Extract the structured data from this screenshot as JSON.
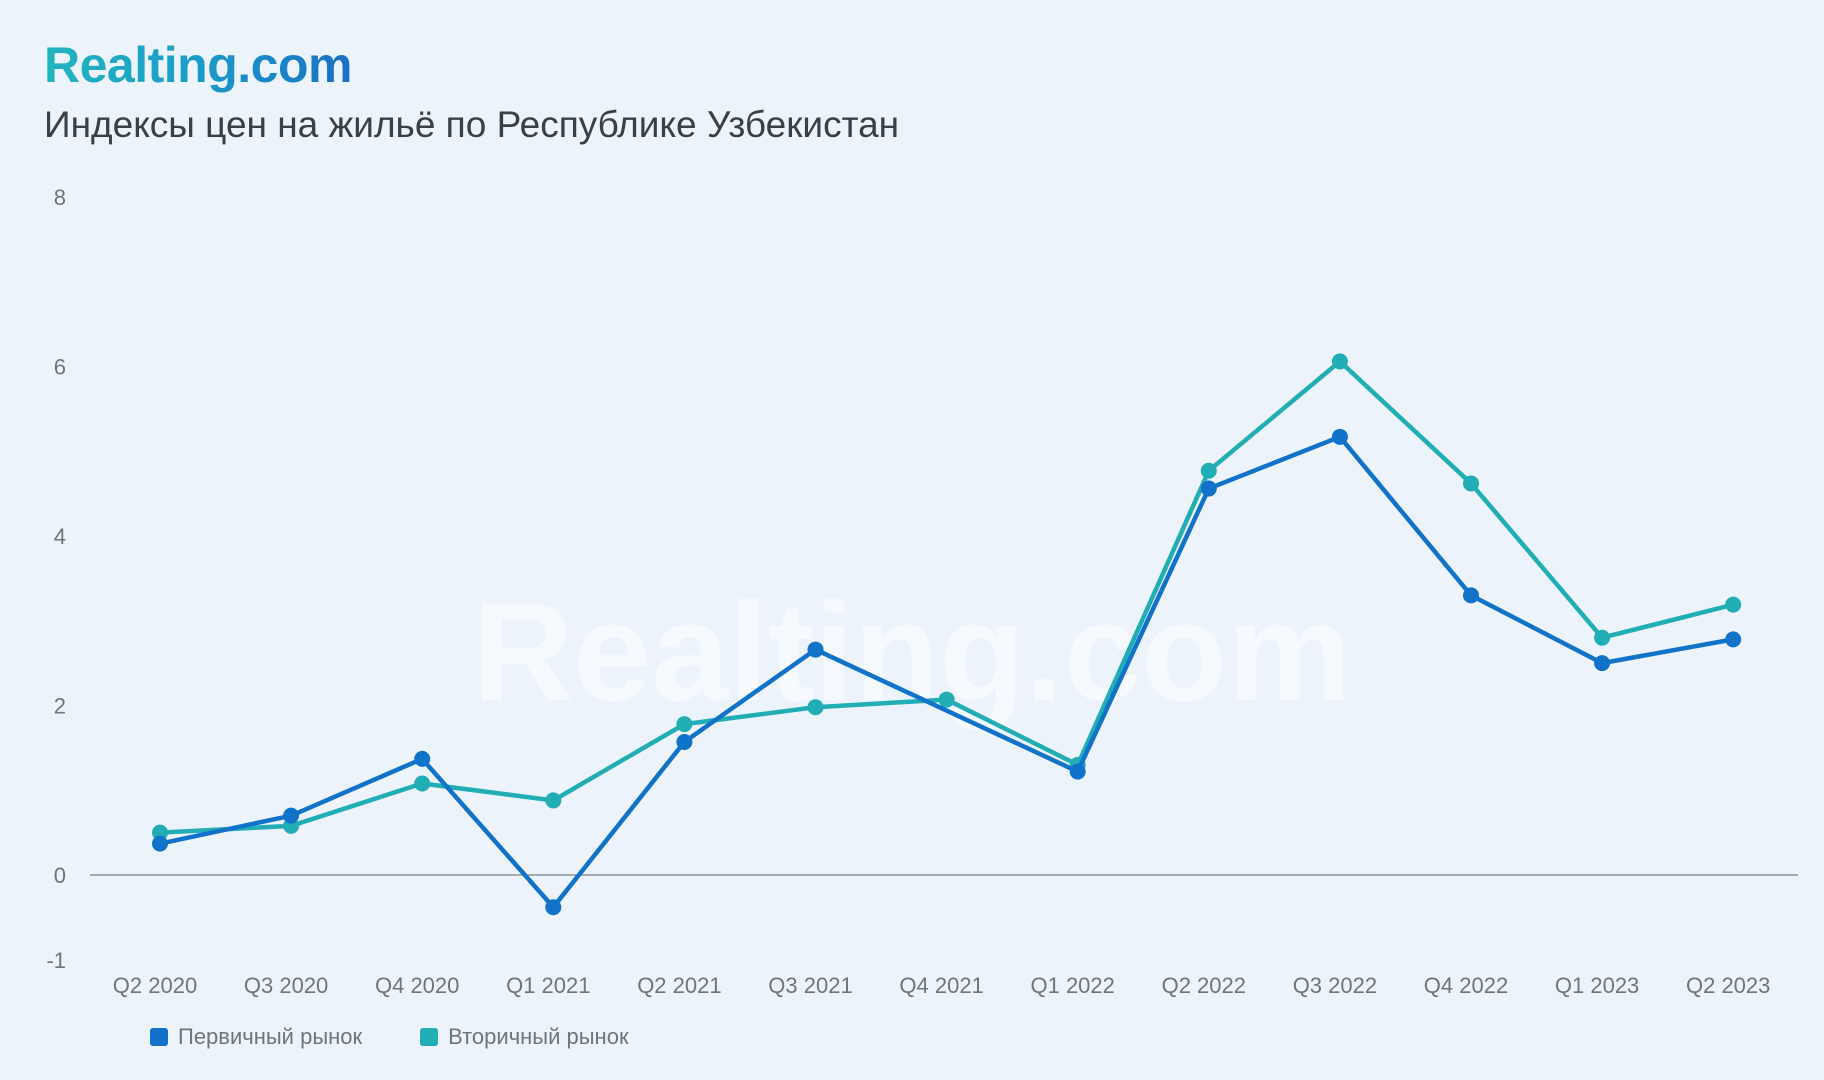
{
  "header": {
    "brand": "Realting.com",
    "title": "Индексы цен на жильё по Республике Узбекистан"
  },
  "watermark": "Realting.com",
  "colors": {
    "background": "#EDF3FB",
    "primary_market": "#1172C9",
    "secondary_market": "#20ADB4",
    "axis_line": "#8C929A"
  },
  "chart_data": {
    "type": "line",
    "title": "Индексы цен на жильё по Республике Узбекистан",
    "xlabel": "",
    "ylabel": "",
    "categories": [
      "Q2 2020",
      "Q3 2020",
      "Q4 2020",
      "Q1 2021",
      "Q2 2021",
      "Q3 2021",
      "Q4 2021",
      "Q1 2022",
      "Q2 2022",
      "Q3 2022",
      "Q4 2022",
      "Q1 2023",
      "Q2 2023"
    ],
    "yticks": [
      "8",
      "6",
      "4",
      "2",
      "0",
      "-1"
    ],
    "ylim": [
      -1,
      8
    ],
    "grid": false,
    "legend_position": "bottom-left",
    "series": [
      {
        "name": "Первичный рынок",
        "color": "#1172C9",
        "values": [
          0.37,
          0.7,
          1.37,
          -0.38,
          1.57,
          2.66,
          null,
          1.22,
          4.56,
          5.17,
          3.3,
          2.5,
          2.78
        ]
      },
      {
        "name": "Вторичный рынок",
        "color": "#20ADB4",
        "values": [
          0.5,
          0.58,
          1.08,
          0.88,
          1.78,
          1.98,
          2.07,
          1.3,
          4.77,
          6.06,
          4.62,
          2.8,
          3.19
        ]
      }
    ]
  }
}
